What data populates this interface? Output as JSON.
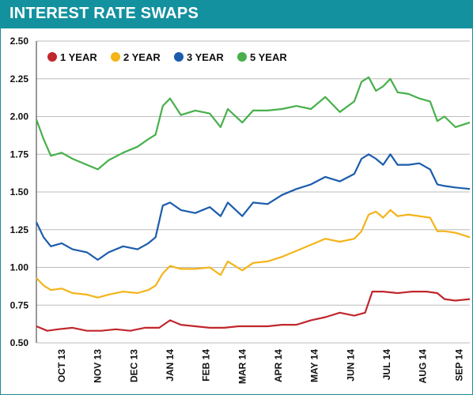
{
  "header": {
    "title": "INTEREST RATE SWAPS"
  },
  "colors": {
    "accent": "#14919f",
    "grid": "#bdbdbd"
  },
  "chart_data": {
    "type": "line",
    "title": "INTEREST RATE SWAPS",
    "xlabel": "",
    "ylabel": "",
    "ylim": [
      0.5,
      2.5
    ],
    "yticks": [
      0.5,
      0.75,
      1.0,
      1.25,
      1.5,
      1.75,
      2.0,
      2.25,
      2.5
    ],
    "ytick_labels": [
      "0.50",
      "0.75",
      "1.00",
      "1.25",
      "1.50",
      "1.75",
      "2.00",
      "2.25",
      "2.50"
    ],
    "x_labels": [
      "OCT 13",
      "NOV 13",
      "DEC 13",
      "JAN 14",
      "FEB 14",
      "MAR 14",
      "APR 14",
      "MAY 14",
      "JUN 14",
      "JUL 14",
      "AUG 14",
      "SEP 14"
    ],
    "x_label_positions": [
      0.7,
      1.7,
      2.7,
      3.7,
      4.7,
      5.7,
      6.7,
      7.7,
      8.7,
      9.7,
      10.7,
      11.7
    ],
    "x_range": [
      0,
      12
    ],
    "grid": "horizontal",
    "legend_position": "top-left",
    "series": [
      {
        "name": "1 YEAR",
        "color": "#c0272d",
        "x": [
          0,
          0.3,
          0.6,
          1,
          1.4,
          1.8,
          2.2,
          2.6,
          3,
          3.4,
          3.7,
          4,
          4.4,
          4.8,
          5.2,
          5.6,
          6,
          6.4,
          6.8,
          7.2,
          7.6,
          8,
          8.4,
          8.8,
          9.1,
          9.3,
          9.6,
          10,
          10.4,
          10.8,
          11.1,
          11.3,
          11.6,
          12
        ],
        "values": [
          0.61,
          0.58,
          0.59,
          0.6,
          0.58,
          0.58,
          0.59,
          0.58,
          0.6,
          0.6,
          0.65,
          0.62,
          0.61,
          0.6,
          0.6,
          0.61,
          0.61,
          0.61,
          0.62,
          0.62,
          0.65,
          0.67,
          0.7,
          0.68,
          0.7,
          0.84,
          0.84,
          0.83,
          0.84,
          0.84,
          0.83,
          0.79,
          0.78,
          0.79
        ]
      },
      {
        "name": "2 YEAR",
        "color": "#f4b41a",
        "x": [
          0,
          0.2,
          0.4,
          0.7,
          1,
          1.4,
          1.7,
          2,
          2.4,
          2.8,
          3.1,
          3.3,
          3.5,
          3.7,
          4,
          4.4,
          4.8,
          5.1,
          5.3,
          5.7,
          6,
          6.4,
          6.8,
          7.2,
          7.6,
          8,
          8.4,
          8.8,
          9,
          9.2,
          9.4,
          9.6,
          9.8,
          10,
          10.3,
          10.6,
          10.9,
          11.1,
          11.3,
          11.6,
          12
        ],
        "values": [
          0.93,
          0.88,
          0.85,
          0.86,
          0.83,
          0.82,
          0.8,
          0.82,
          0.84,
          0.83,
          0.85,
          0.88,
          0.96,
          1.01,
          0.99,
          0.99,
          1.0,
          0.95,
          1.04,
          0.98,
          1.03,
          1.04,
          1.07,
          1.11,
          1.15,
          1.19,
          1.17,
          1.19,
          1.24,
          1.35,
          1.37,
          1.33,
          1.38,
          1.34,
          1.35,
          1.34,
          1.33,
          1.24,
          1.24,
          1.23,
          1.2
        ]
      },
      {
        "name": "3 YEAR",
        "color": "#1b5cab",
        "x": [
          0,
          0.2,
          0.4,
          0.7,
          1,
          1.4,
          1.7,
          2,
          2.4,
          2.8,
          3.1,
          3.3,
          3.5,
          3.7,
          4,
          4.4,
          4.8,
          5.1,
          5.3,
          5.7,
          6,
          6.4,
          6.8,
          7.2,
          7.6,
          8,
          8.4,
          8.8,
          9,
          9.2,
          9.4,
          9.6,
          9.8,
          10,
          10.3,
          10.6,
          10.9,
          11.1,
          11.3,
          11.6,
          12
        ],
        "values": [
          1.3,
          1.2,
          1.14,
          1.16,
          1.12,
          1.1,
          1.05,
          1.1,
          1.14,
          1.12,
          1.16,
          1.2,
          1.41,
          1.43,
          1.38,
          1.36,
          1.4,
          1.34,
          1.43,
          1.34,
          1.43,
          1.42,
          1.48,
          1.52,
          1.55,
          1.6,
          1.57,
          1.62,
          1.72,
          1.75,
          1.72,
          1.68,
          1.75,
          1.68,
          1.68,
          1.69,
          1.65,
          1.55,
          1.54,
          1.53,
          1.52
        ]
      },
      {
        "name": "5 YEAR",
        "color": "#47b04b",
        "x": [
          0,
          0.2,
          0.4,
          0.7,
          1,
          1.4,
          1.7,
          2,
          2.4,
          2.8,
          3.1,
          3.3,
          3.5,
          3.7,
          4,
          4.4,
          4.8,
          5.1,
          5.3,
          5.7,
          6,
          6.4,
          6.8,
          7.2,
          7.6,
          8,
          8.4,
          8.8,
          9,
          9.2,
          9.4,
          9.6,
          9.8,
          10,
          10.3,
          10.6,
          10.9,
          11.1,
          11.3,
          11.6,
          12
        ],
        "values": [
          1.98,
          1.85,
          1.74,
          1.76,
          1.72,
          1.68,
          1.65,
          1.71,
          1.76,
          1.8,
          1.85,
          1.88,
          2.07,
          2.12,
          2.01,
          2.04,
          2.02,
          1.93,
          2.05,
          1.96,
          2.04,
          2.04,
          2.05,
          2.07,
          2.05,
          2.13,
          2.03,
          2.1,
          2.23,
          2.26,
          2.17,
          2.2,
          2.25,
          2.16,
          2.15,
          2.12,
          2.1,
          1.97,
          2.0,
          1.93,
          1.96
        ]
      }
    ]
  }
}
